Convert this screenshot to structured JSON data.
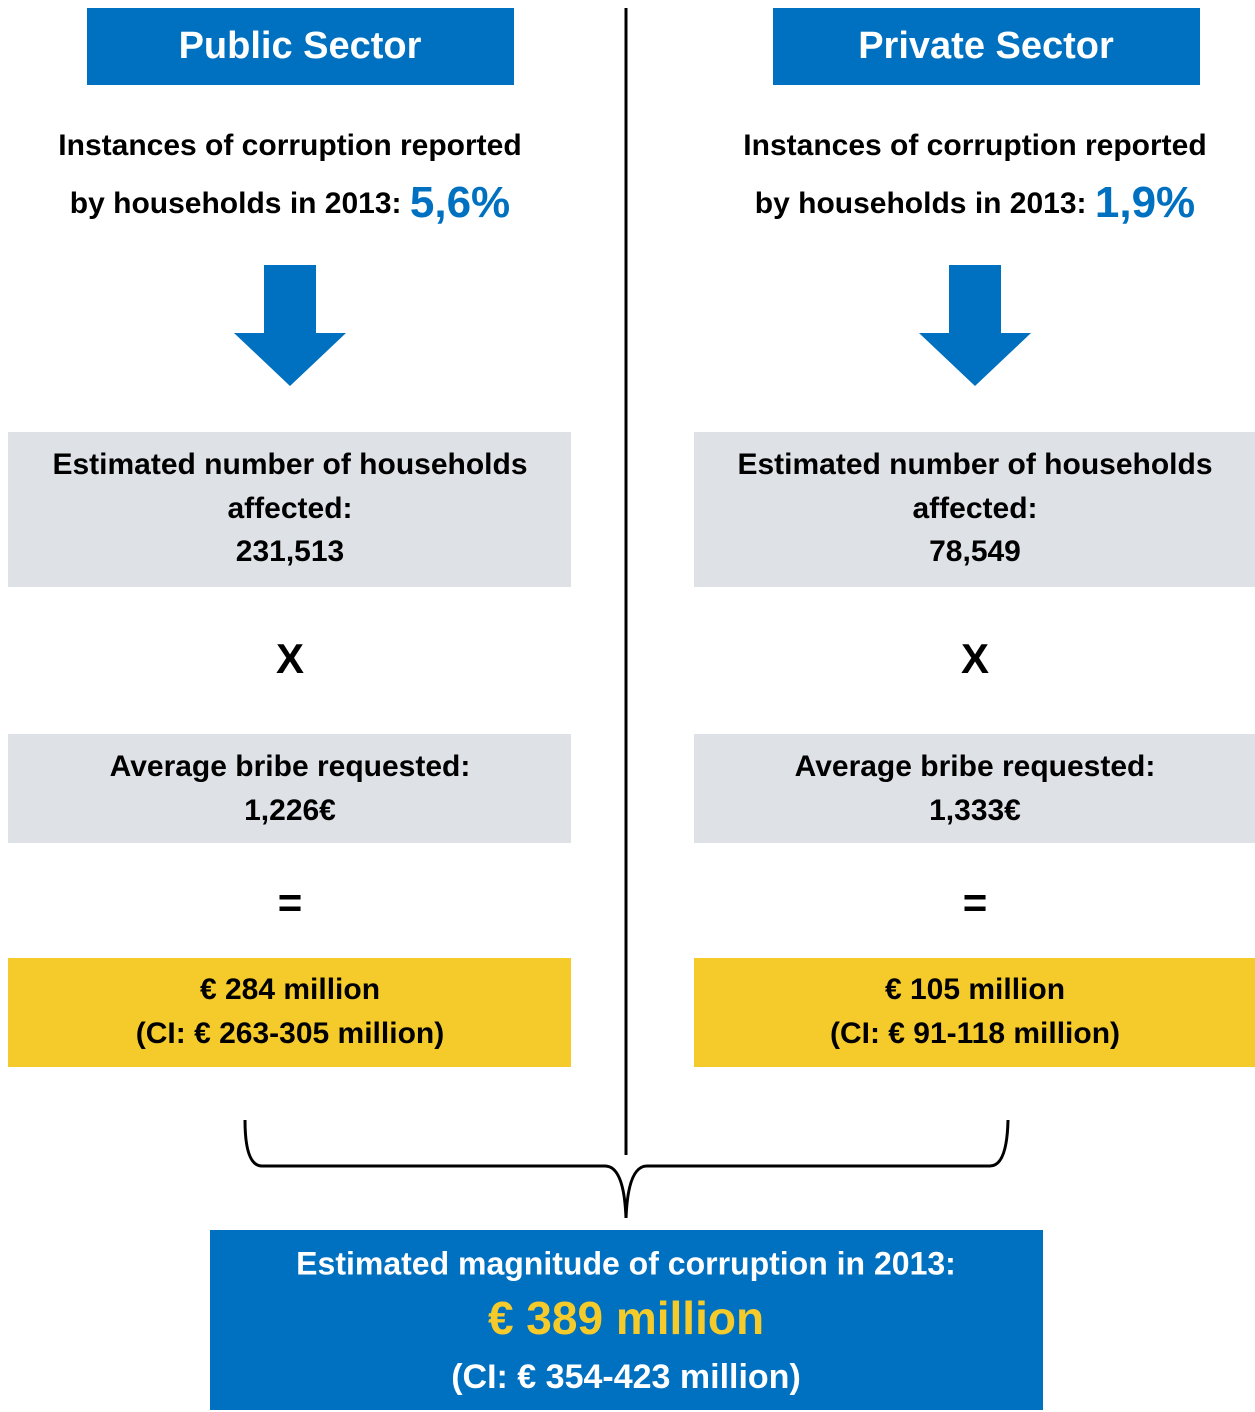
{
  "columns": [
    {
      "header": "Public Sector",
      "instances_line_1": "Instances of corruption reported",
      "instances_line_2": "by households in 2013:",
      "instances_value": "5,6%",
      "households_line_1": "Estimated number of households",
      "households_line_2": "affected:",
      "households_value": "231,513",
      "multiply": "X",
      "bribe_label": "Average bribe requested:",
      "bribe_value": "1,226€",
      "equals": "=",
      "total": "€ 284 million",
      "ci": "(CI: € 263-305 million)"
    },
    {
      "header": "Private Sector",
      "instances_line_1": "Instances of corruption reported",
      "instances_line_2": "by households in 2013:",
      "instances_value": "1,9%",
      "households_line_1": "Estimated number of households",
      "households_line_2": "affected:",
      "households_value": "78,549",
      "multiply": "X",
      "bribe_label": "Average bribe requested:",
      "bribe_value": "1,333€",
      "equals": "=",
      "total": "€ 105 million",
      "ci": "(CI: € 91-118 million)"
    }
  ],
  "summary": {
    "label": "Estimated magnitude of corruption in 2013:",
    "value": "€ 389 million",
    "ci": "(CI: € 354-423 million)"
  }
}
